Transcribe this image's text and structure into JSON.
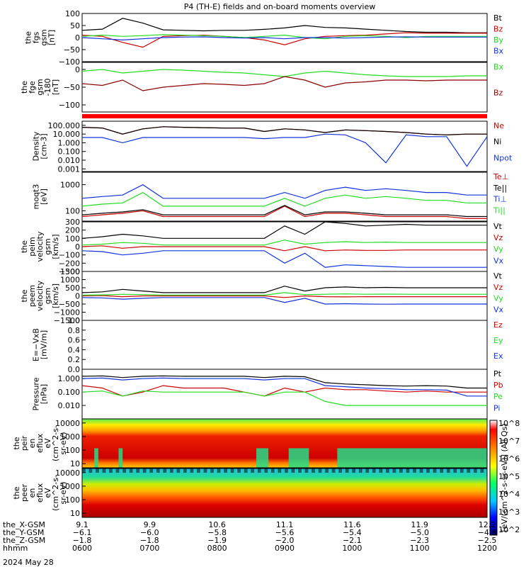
{
  "title": "P4 (TH-E) fields and on-board moments overview",
  "colors": {
    "black": "#000000",
    "red": "#cc0000",
    "green": "#22dd22",
    "blue": "#1133dd",
    "darkred": "#8b0000"
  },
  "chart_data": [
    {
      "type": "line",
      "panel": "fgs",
      "ylabel": [
        "the",
        "fgs",
        "gsm",
        "[nT]"
      ],
      "ylim": [
        -100,
        100
      ],
      "ticks": [
        "100",
        "50",
        "0",
        "−50",
        "−100"
      ],
      "tick_values": [
        100,
        50,
        0,
        -50,
        -100
      ],
      "series": [
        {
          "name": "Bt",
          "color": "#000000",
          "values": [
            30,
            35,
            80,
            60,
            32,
            30,
            28,
            30,
            30,
            34,
            40,
            50,
            42,
            40,
            35,
            30,
            25,
            22,
            22,
            20,
            20
          ]
        },
        {
          "name": "Bz",
          "color": "#cc0000",
          "values": [
            10,
            5,
            -20,
            -40,
            5,
            8,
            10,
            5,
            0,
            -10,
            -30,
            -5,
            5,
            8,
            10,
            15,
            20,
            18,
            18,
            18,
            18
          ]
        },
        {
          "name": "By",
          "color": "#22dd22",
          "values": [
            5,
            10,
            5,
            8,
            12,
            10,
            8,
            5,
            0,
            5,
            10,
            0,
            -5,
            5,
            8,
            5,
            0,
            5,
            5,
            5,
            5
          ]
        },
        {
          "name": "Bx",
          "color": "#1133dd",
          "values": [
            0,
            -5,
            -10,
            -5,
            0,
            2,
            3,
            0,
            -2,
            0,
            -5,
            0,
            0,
            -2,
            0,
            2,
            3,
            2,
            2,
            2,
            2
          ]
        }
      ]
    },
    {
      "type": "line",
      "panel": "fge",
      "ylabel": [
        "the",
        "fge",
        "gsm",
        "-180",
        "[nT]"
      ],
      "ylim": [
        -120,
        20
      ],
      "ticks": [
        "0",
        "−50",
        "−100"
      ],
      "tick_values": [
        0,
        -50,
        -100
      ],
      "series": [
        {
          "name": "Bx",
          "color": "#22dd22",
          "values": [
            -5,
            0,
            -10,
            -5,
            0,
            -2,
            -5,
            -8,
            -10,
            -15,
            -20,
            -10,
            -5,
            -10,
            -15,
            -18,
            -20,
            -20,
            -20,
            -18,
            -18
          ]
        },
        {
          "name": "Bz",
          "color": "#8b0000",
          "values": [
            -40,
            -45,
            -30,
            -60,
            -50,
            -45,
            -40,
            -42,
            -45,
            -40,
            -20,
            -30,
            -50,
            -38,
            -35,
            -30,
            -30,
            -32,
            -30,
            -30,
            -30
          ]
        }
      ]
    },
    {
      "type": "line",
      "panel": "density",
      "ylabel": [
        "Density",
        "[cm-3]"
      ],
      "yscale": "log",
      "ylim": [
        0.0005,
        300
      ],
      "ticks": [
        "100.000",
        "10.000",
        "1.000",
        "0.100",
        "0.010",
        "0.001"
      ],
      "tick_values": [
        100,
        10,
        1,
        0.1,
        0.01,
        0.001
      ],
      "series": [
        {
          "name": "Ne",
          "color": "#cc0000",
          "values": [
            60,
            50,
            10,
            40,
            70,
            60,
            55,
            50,
            50,
            20,
            40,
            30,
            15,
            30,
            25,
            20,
            15,
            10,
            8,
            10,
            10
          ]
        },
        {
          "name": "Ni",
          "color": "#000000",
          "values": [
            60,
            50,
            10,
            40,
            70,
            60,
            55,
            50,
            50,
            20,
            40,
            30,
            15,
            30,
            25,
            20,
            15,
            10,
            8,
            10,
            10
          ]
        },
        {
          "name": "Npot",
          "color": "#1133dd",
          "values": [
            4,
            4,
            1,
            4,
            4,
            4,
            4,
            4,
            4,
            3,
            4,
            4,
            10,
            8,
            1,
            0.005,
            8,
            5,
            5,
            0.002,
            5
          ]
        }
      ],
      "legend": [
        "Ne",
        "Ni",
        "Npot"
      ]
    },
    {
      "type": "line",
      "panel": "temperature",
      "ylabel": [
        "moqt3",
        "[eV]"
      ],
      "yscale": "log",
      "ylim": [
        40,
        3000
      ],
      "ticks": [
        "1000",
        "100"
      ],
      "tick_values": [
        1000,
        100
      ],
      "series": [
        {
          "name": "Te⊥",
          "color": "#cc0000",
          "values": [
            60,
            70,
            80,
            100,
            60,
            60,
            60,
            60,
            60,
            60,
            150,
            60,
            80,
            80,
            70,
            60,
            60,
            60,
            60,
            50,
            50
          ]
        },
        {
          "name": "Te||",
          "color": "#000000",
          "values": [
            70,
            80,
            90,
            110,
            70,
            70,
            70,
            70,
            70,
            70,
            160,
            70,
            90,
            90,
            80,
            70,
            70,
            70,
            70,
            60,
            60
          ]
        },
        {
          "name": "Ti⊥",
          "color": "#1133dd",
          "values": [
            300,
            350,
            400,
            1000,
            300,
            300,
            300,
            300,
            300,
            300,
            500,
            300,
            600,
            800,
            600,
            700,
            600,
            500,
            500,
            400,
            400
          ]
        },
        {
          "name": "Ti||",
          "color": "#22dd22",
          "values": [
            150,
            180,
            200,
            500,
            150,
            150,
            150,
            150,
            150,
            150,
            300,
            150,
            300,
            400,
            300,
            350,
            300,
            250,
            250,
            200,
            200
          ]
        }
      ],
      "legend": [
        "Te⊥",
        "Te||",
        "Ti⊥",
        "Ti||"
      ]
    },
    {
      "type": "line",
      "panel": "ion_velocity",
      "ylabel": [
        "the",
        "peim",
        "velocity",
        "gsm",
        "[km/s]"
      ],
      "ylim": [
        -300,
        300
      ],
      "ticks": [
        "300",
        "200",
        "100",
        "0",
        "−100",
        "−200",
        "−300"
      ],
      "tick_values": [
        300,
        200,
        100,
        0,
        -100,
        -200,
        -300
      ],
      "series": [
        {
          "name": "Vt",
          "color": "#000000",
          "values": [
            100,
            120,
            150,
            130,
            100,
            100,
            100,
            100,
            100,
            100,
            250,
            150,
            300,
            280,
            250,
            260,
            270,
            260,
            260,
            260,
            260
          ]
        },
        {
          "name": "Vz",
          "color": "#cc0000",
          "values": [
            0,
            10,
            -20,
            0,
            0,
            0,
            0,
            0,
            0,
            0,
            -50,
            0,
            -50,
            -40,
            -45,
            -45,
            -40,
            -40,
            -40,
            -40,
            -40
          ]
        },
        {
          "name": "Vy",
          "color": "#22dd22",
          "values": [
            20,
            30,
            50,
            40,
            20,
            20,
            20,
            20,
            20,
            20,
            80,
            30,
            50,
            60,
            50,
            55,
            50,
            50,
            50,
            50,
            50
          ]
        },
        {
          "name": "Vx",
          "color": "#1133dd",
          "values": [
            -50,
            -60,
            -100,
            -80,
            -50,
            -50,
            -50,
            -50,
            -50,
            -50,
            -200,
            -80,
            -250,
            -220,
            -230,
            -240,
            -250,
            -250,
            -250,
            -250,
            -250
          ]
        }
      ]
    },
    {
      "type": "line",
      "panel": "electron_velocity",
      "ylabel": [
        "the",
        "peem",
        "velocity",
        "gsm",
        "[km/s]"
      ],
      "ylim": [
        -1500,
        1500
      ],
      "ticks": [
        "1500",
        "1000",
        "500",
        "0",
        "−500",
        "−1000",
        "−1500"
      ],
      "tick_values": [
        1500,
        1000,
        500,
        0,
        -500,
        -1000,
        -1500
      ],
      "series": [
        {
          "name": "Vt",
          "color": "#000000",
          "values": [
            200,
            250,
            400,
            300,
            200,
            200,
            200,
            200,
            200,
            200,
            600,
            300,
            500,
            550,
            500,
            520,
            500,
            500,
            500,
            500,
            500
          ]
        },
        {
          "name": "Vz",
          "color": "#cc0000",
          "values": [
            0,
            20,
            -50,
            0,
            0,
            0,
            0,
            0,
            0,
            0,
            -100,
            0,
            -50,
            -60,
            -50,
            -50,
            -50,
            -50,
            -50,
            -50,
            -50
          ]
        },
        {
          "name": "Vy",
          "color": "#22dd22",
          "values": [
            50,
            60,
            100,
            80,
            50,
            50,
            50,
            50,
            50,
            50,
            200,
            80,
            100,
            120,
            100,
            110,
            100,
            100,
            100,
            100,
            100
          ]
        },
        {
          "name": "Vx",
          "color": "#1133dd",
          "values": [
            -100,
            -120,
            -200,
            -150,
            -100,
            -100,
            -100,
            -100,
            -100,
            -100,
            -400,
            -150,
            -500,
            -480,
            -500,
            -510,
            -500,
            -500,
            -500,
            -500,
            -500
          ]
        }
      ]
    },
    {
      "type": "line",
      "panel": "efield",
      "ylabel": [
        "E=−VxB",
        "[mV/m]"
      ],
      "ylim": [
        0,
        1
      ],
      "ticks": [
        "1.0",
        "0.8",
        "0.6",
        "0.4",
        "0.2",
        "0.0"
      ],
      "tick_values": [
        1.0,
        0.8,
        0.6,
        0.4,
        0.2,
        0.0
      ],
      "series": [
        {
          "name": "Ez",
          "color": "#cc0000",
          "values": []
        },
        {
          "name": "Ey",
          "color": "#22dd22",
          "values": []
        },
        {
          "name": "Ex",
          "color": "#1133dd",
          "values": []
        }
      ]
    },
    {
      "type": "line",
      "panel": "pressure",
      "ylabel": [
        "Pressure",
        "[nPa]"
      ],
      "yscale": "log",
      "ylim": [
        0.001,
        5
      ],
      "ticks": [
        "1.000",
        "0.100",
        "0.010"
      ],
      "tick_values": [
        1,
        0.1,
        0.01
      ],
      "series": [
        {
          "name": "Pt",
          "color": "#000000",
          "values": [
            1.5,
            1.6,
            1.2,
            1.5,
            1.6,
            1.5,
            1.5,
            1.5,
            1.5,
            1.2,
            1.5,
            1.4,
            0.5,
            0.4,
            0.35,
            0.3,
            0.28,
            0.3,
            0.28,
            0.2,
            0.2
          ]
        },
        {
          "name": "Pb",
          "color": "#cc0000",
          "values": [
            0.3,
            0.2,
            0.05,
            0.1,
            0.3,
            0.2,
            0.2,
            0.2,
            0.1,
            0.05,
            0.2,
            0.1,
            0.2,
            0.15,
            0.15,
            0.12,
            0.1,
            0.12,
            0.1,
            0.1,
            0.1
          ]
        },
        {
          "name": "Pe",
          "color": "#22dd22",
          "values": [
            0.1,
            0.12,
            0.05,
            0.12,
            0.1,
            0.1,
            0.1,
            0.1,
            0.1,
            0.05,
            0.1,
            0.1,
            0.02,
            0.01,
            0.01,
            0.01,
            0.01,
            0.01,
            0.01,
            0.01,
            0.01
          ]
        },
        {
          "name": "Pi",
          "color": "#1133dd",
          "values": [
            1.0,
            1.1,
            0.8,
            1.0,
            1.1,
            1.0,
            1.0,
            1.0,
            1.0,
            0.8,
            1.0,
            1.0,
            0.3,
            0.25,
            0.2,
            0.18,
            0.15,
            0.15,
            0.14,
            0.05,
            0.05
          ]
        }
      ]
    },
    {
      "type": "heatmap",
      "panel": "ion_spectrogram",
      "ylabel": [
        "the",
        "peir",
        "en",
        "eflux",
        "eV",
        "(cm^2-s-",
        "sr-eV)"
      ],
      "yscale": "log",
      "ylim": [
        5,
        20000
      ],
      "ticks": [
        "10000",
        "1000",
        "100",
        "10"
      ],
      "tick_values": [
        10000,
        1000,
        100,
        10
      ]
    },
    {
      "type": "heatmap",
      "panel": "electron_spectrogram",
      "ylabel": [
        "the",
        "peer",
        "en",
        "eflux",
        "eV",
        "(cm^2-s-",
        "sr-eV)"
      ],
      "yscale": "log",
      "ylim": [
        5,
        20000
      ],
      "ticks": [
        "10000",
        "1000",
        "100",
        "10"
      ],
      "tick_values": [
        10000,
        1000,
        100,
        10
      ]
    }
  ],
  "colorbar": {
    "label": "[eV/(cm^2-s-sr-eV)] (All Qs)",
    "ticks": [
      "10^8",
      "10^7",
      "10^6",
      "10^5",
      "10^4",
      "10^3",
      "10^2"
    ],
    "colors": [
      "#ffffff",
      "#ff0000",
      "#ff8800",
      "#ffff00",
      "#00ff66",
      "#00ccff",
      "#0000ff",
      "#000088"
    ]
  },
  "xaxis": {
    "rows": [
      {
        "label": "the_X-GSM",
        "values": [
          "9.1",
          "9.9",
          "10.6",
          "11.1",
          "11.6",
          "11.9",
          "12.2"
        ]
      },
      {
        "label": "the_Y-GSM",
        "values": [
          "−6.1",
          "−6.0",
          "−5.8",
          "−5.6",
          "−5.4",
          "−5.0",
          "−4.6"
        ]
      },
      {
        "label": "the_Z-GSM",
        "values": [
          "−1.8",
          "−1.8",
          "−1.9",
          "−2.0",
          "−2.1",
          "−2.3",
          "−2.5"
        ]
      },
      {
        "label": "hhmm",
        "values": [
          "0600",
          "0700",
          "0800",
          "0900",
          "1000",
          "1100",
          "1200"
        ]
      }
    ],
    "date": "2024 May 28"
  }
}
